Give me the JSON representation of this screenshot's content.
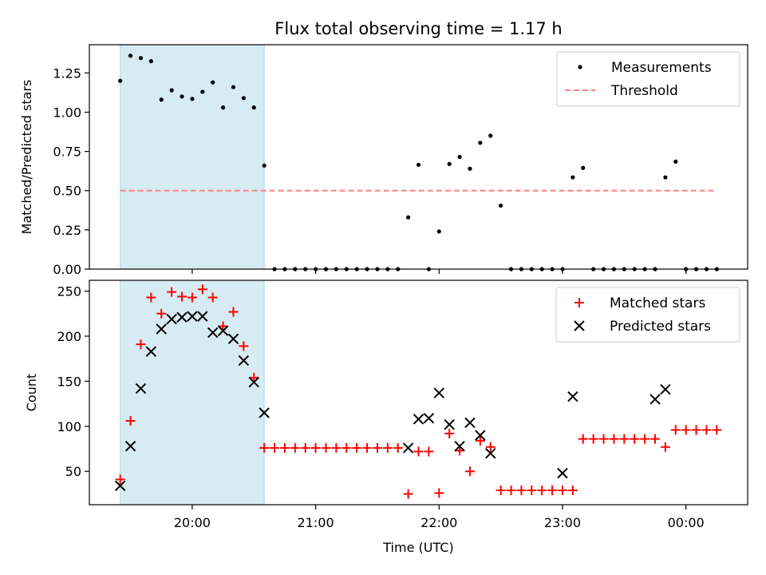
{
  "chart_data": [
    {
      "type": "scatter",
      "title": "Flux total observing time = 1.17 h",
      "ylabel": "Matched/Predicted stars",
      "ylim": [
        0,
        1.43
      ],
      "yticks": [
        0.0,
        0.25,
        0.5,
        0.75,
        1.0,
        1.25
      ],
      "ytick_labels": [
        "0.00",
        "0.25",
        "0.50",
        "0.75",
        "1.00",
        "1.25"
      ],
      "threshold": {
        "name": "Threshold",
        "value": 0.5,
        "x_start": "19:25",
        "x_end": "00:15",
        "color": "#ff8080"
      },
      "shaded_region": {
        "x_start": "19:25",
        "x_end": "20:35",
        "color": "#add8e6"
      },
      "legend": {
        "position": "top-right",
        "entries": [
          "Measurements",
          "Threshold"
        ]
      },
      "series": [
        {
          "name": "Measurements",
          "color": "#000000",
          "x": [
            "19:25",
            "19:30",
            "19:35",
            "19:40",
            "19:45",
            "19:50",
            "19:55",
            "20:00",
            "20:05",
            "20:10",
            "20:15",
            "20:20",
            "20:25",
            "20:30",
            "20:35",
            "20:40",
            "20:45",
            "20:50",
            "20:55",
            "21:00",
            "21:05",
            "21:10",
            "21:15",
            "21:20",
            "21:25",
            "21:30",
            "21:35",
            "21:40",
            "21:45",
            "21:50",
            "21:55",
            "22:00",
            "22:05",
            "22:10",
            "22:15",
            "22:20",
            "22:25",
            "22:30",
            "22:35",
            "22:40",
            "22:45",
            "22:50",
            "22:55",
            "23:00",
            "23:05",
            "23:10",
            "23:15",
            "23:20",
            "23:25",
            "23:30",
            "23:35",
            "23:40",
            "23:45",
            "23:50",
            "23:55",
            "00:00",
            "00:05",
            "00:10",
            "00:15"
          ],
          "y": [
            1.2,
            1.36,
            1.345,
            1.325,
            1.08,
            1.14,
            1.1,
            1.085,
            1.13,
            1.19,
            1.03,
            1.16,
            1.09,
            1.03,
            0.66,
            0,
            0,
            0,
            0,
            0,
            0,
            0,
            0,
            0,
            0,
            0,
            0,
            0,
            0.33,
            0.665,
            0,
            0.24,
            0.67,
            0.715,
            0.64,
            0.805,
            0.85,
            0.405,
            0,
            0,
            0,
            0,
            0,
            0,
            0.585,
            0.645,
            0,
            0,
            0,
            0,
            0,
            0,
            0,
            0.585,
            0.685,
            0,
            0,
            0,
            0
          ]
        }
      ]
    },
    {
      "type": "scatter",
      "xlabel": "Time (UTC)",
      "ylabel": "Count",
      "ylim": [
        13,
        262
      ],
      "yticks": [
        50,
        100,
        150,
        200,
        250
      ],
      "ytick_labels": [
        "50",
        "100",
        "150",
        "200",
        "250"
      ],
      "x_range": [
        "19:10",
        "00:30"
      ],
      "xtick_labels": [
        "20:00",
        "21:00",
        "22:00",
        "23:00",
        "00:00"
      ],
      "shaded_region": {
        "x_start": "19:25",
        "x_end": "20:35",
        "color": "#add8e6"
      },
      "legend": {
        "position": "top-right",
        "entries": [
          "Matched stars",
          "Predicted stars"
        ]
      },
      "series": [
        {
          "name": "Matched stars",
          "marker": "plus",
          "color": "#ff0000",
          "x": [
            "19:25",
            "19:30",
            "19:35",
            "19:40",
            "19:45",
            "19:50",
            "19:55",
            "20:00",
            "20:05",
            "20:10",
            "20:15",
            "20:20",
            "20:25",
            "20:30",
            "20:35",
            "20:40",
            "20:45",
            "20:50",
            "20:55",
            "21:00",
            "21:05",
            "21:10",
            "21:15",
            "21:20",
            "21:25",
            "21:30",
            "21:35",
            "21:40",
            "21:45",
            "21:50",
            "21:55",
            "22:00",
            "22:05",
            "22:10",
            "22:15",
            "22:20",
            "22:25",
            "22:30",
            "22:35",
            "22:40",
            "22:45",
            "22:50",
            "22:55",
            "23:00",
            "23:05",
            "23:10",
            "23:15",
            "23:20",
            "23:25",
            "23:30",
            "23:35",
            "23:40",
            "23:45",
            "23:50",
            "23:55",
            "00:00",
            "00:05",
            "00:10",
            "00:15"
          ],
          "y": [
            41,
            106,
            191,
            243,
            225,
            249,
            244,
            243,
            252,
            243,
            211,
            227,
            189,
            154,
            76,
            76,
            76,
            76,
            76,
            76,
            76,
            76,
            76,
            76,
            76,
            76,
            76,
            76,
            25,
            72,
            72,
            26,
            92,
            73,
            50,
            84,
            77,
            29,
            29,
            29,
            29,
            29,
            29,
            29,
            29,
            86,
            86,
            86,
            86,
            86,
            86,
            86,
            86,
            77,
            96,
            96,
            96,
            96,
            96
          ]
        },
        {
          "name": "Predicted stars",
          "marker": "x",
          "color": "#000000",
          "x": [
            "19:25",
            "19:30",
            "19:35",
            "19:40",
            "19:45",
            "19:50",
            "19:55",
            "20:00",
            "20:05",
            "20:10",
            "20:15",
            "20:20",
            "20:25",
            "20:30",
            "20:35",
            "21:45",
            "21:50",
            "21:55",
            "22:00",
            "22:05",
            "22:10",
            "22:15",
            "22:20",
            "22:25",
            "23:00",
            "23:05",
            "23:45",
            "23:50"
          ],
          "y": [
            34,
            78,
            142,
            183,
            208,
            219,
            221,
            222,
            222,
            204,
            206,
            197,
            173,
            149,
            115,
            76,
            108,
            109,
            137,
            102,
            78,
            104,
            90,
            70,
            48,
            133,
            130,
            141
          ]
        }
      ]
    }
  ]
}
